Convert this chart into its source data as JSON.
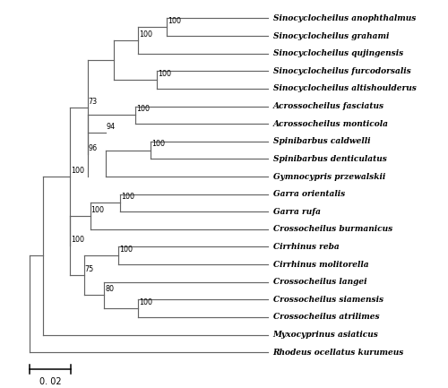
{
  "species": [
    "Sinocyclocheilus anophthalmus",
    "Sinocyclocheilus grahami",
    "Sinocyclocheilus qujingensis",
    "Sinocyclocheilus furcodorsalis",
    "Sinocyclocheilus altishoulderus",
    "Acrossocheilus fasciatus",
    "Acrossocheilus monticola",
    "Spinibarbus caldwelli",
    "Spinibarbus denticulatus",
    "Gymnocypris przewalskii",
    "Garra orientalis",
    "Garra rufa",
    "Crossocheilus burmanicus",
    "Cirrhinus reba",
    "Cirrhinus molitorella",
    "Crossocheilus langei",
    "Crossocheilus siamensis",
    "Crossocheilus atrilimes",
    "Myxocyprinus asiaticus",
    "Rhodeus ocellatus kurumeus"
  ],
  "line_color": "#646464",
  "text_color": "#000000",
  "background": "#ffffff",
  "scale_bar_label": "0. 02"
}
